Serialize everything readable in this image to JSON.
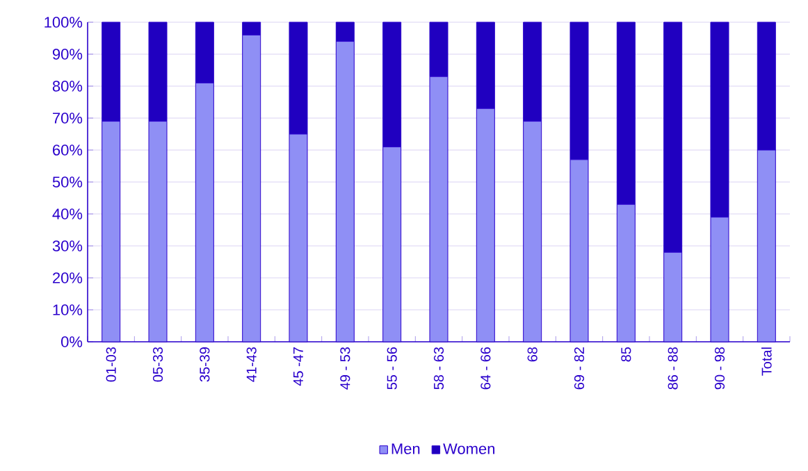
{
  "chart_data": {
    "type": "bar",
    "stacked": true,
    "categories": [
      "01-03",
      "05-33",
      "35-39",
      "41-43",
      "45 -47",
      "49 - 53",
      "55 - 56",
      "58 - 63",
      "64 - 66",
      "68",
      "69 - 82",
      "85",
      "86 - 88",
      "90 - 98",
      "Total"
    ],
    "series": [
      {
        "name": "Men",
        "color": "#8f8ff5",
        "values": [
          69,
          69,
          81,
          96,
          65,
          94,
          61,
          83,
          73,
          69,
          57,
          43,
          28,
          39,
          60
        ]
      },
      {
        "name": "Women",
        "color": "#2000c0",
        "values": [
          31,
          31,
          19,
          4,
          35,
          6,
          39,
          17,
          27,
          31,
          43,
          57,
          72,
          61,
          40
        ]
      }
    ],
    "ylim": [
      0,
      100
    ],
    "yticks": [
      {
        "value": 0,
        "label": "0%"
      },
      {
        "value": 10,
        "label": "10%"
      },
      {
        "value": 20,
        "label": "20%"
      },
      {
        "value": 30,
        "label": "30%"
      },
      {
        "value": 40,
        "label": "40%"
      },
      {
        "value": 50,
        "label": "50%"
      },
      {
        "value": 60,
        "label": "60%"
      },
      {
        "value": 70,
        "label": "70%"
      },
      {
        "value": 80,
        "label": "80%"
      },
      {
        "value": 90,
        "label": "90%"
      },
      {
        "value": 100,
        "label": "100%"
      }
    ],
    "grid": "y",
    "legend": "bottom"
  }
}
